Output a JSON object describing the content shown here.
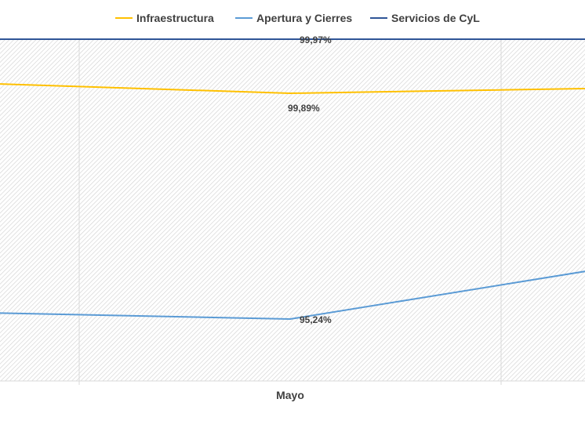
{
  "chart_data": {
    "type": "line",
    "categories": [
      "",
      "Mayo",
      ""
    ],
    "series": [
      {
        "name": "Infraestructura",
        "color": "#FFC000",
        "values": [
          99.91,
          99.89,
          99.9
        ]
      },
      {
        "name": "Apertura y Cierres",
        "color": "#5B9BD5",
        "values": [
          95.45,
          95.24,
          96.9
        ]
      },
      {
        "name": "Servicios de CyL",
        "color": "#2F5597",
        "values": [
          99.97,
          99.97,
          99.97
        ]
      }
    ],
    "data_labels": [
      {
        "series": "Servicios de CyL",
        "category": "Mayo",
        "text": "99,97%"
      },
      {
        "series": "Infraestructura",
        "category": "Mayo",
        "text": "99,89%"
      },
      {
        "series": "Apertura y Cierres",
        "category": "Mayo",
        "text": "95,24%"
      }
    ],
    "legend_position": "top",
    "grid": true,
    "plot_background": "diagonal-hatch",
    "title": "",
    "xlabel": "",
    "ylabel": ""
  }
}
